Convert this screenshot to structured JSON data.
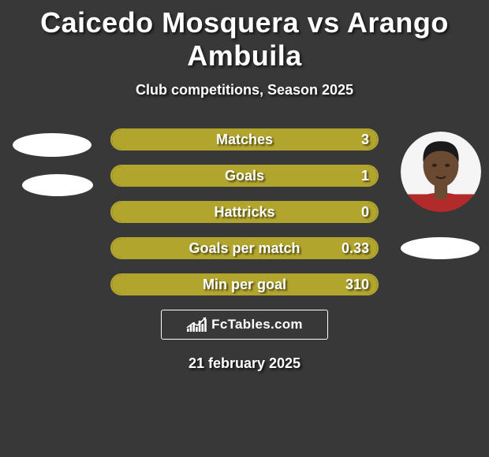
{
  "title": "Caicedo Mosquera vs Arango Ambuila",
  "subtitle": "Club competitions, Season 2025",
  "date": "21 february 2025",
  "logo_text": "FcTables.com",
  "colors": {
    "bar_border": "#b2a52e",
    "bar_fill": "#b2a52e",
    "bg": "#383838"
  },
  "bars": [
    {
      "label": "Matches",
      "left": "",
      "right": "3",
      "right_pct": 100
    },
    {
      "label": "Goals",
      "left": "",
      "right": "1",
      "right_pct": 100
    },
    {
      "label": "Hattricks",
      "left": "",
      "right": "0",
      "right_pct": 100
    },
    {
      "label": "Goals per match",
      "left": "",
      "right": "0.33",
      "right_pct": 100
    },
    {
      "label": "Min per goal",
      "left": "",
      "right": "310",
      "right_pct": 100
    }
  ],
  "logo_chart_bars": [
    4,
    8,
    12,
    6,
    14,
    10,
    16
  ],
  "avatar_right_colors": {
    "bg_top": "#f5f5f5",
    "bg_bottom": "#b32a2a",
    "skin": "#6b4a34",
    "hair": "#1a1a1a"
  }
}
